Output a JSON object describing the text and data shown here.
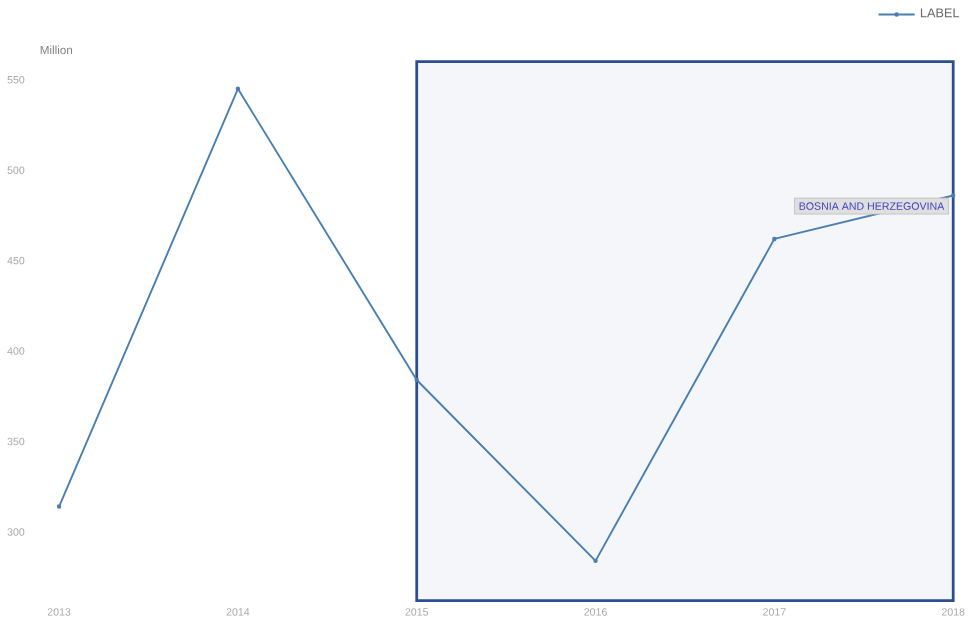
{
  "chart_data": {
    "type": "line",
    "ylabel": "Million",
    "x": [
      2013,
      2014,
      2015,
      2016,
      2017,
      2018
    ],
    "series": [
      {
        "name": "LABEL",
        "color": "#4a7fb0",
        "values": [
          314,
          545,
          384,
          284,
          462,
          486
        ]
      }
    ],
    "xlim": [
      2013,
      2018
    ],
    "ylim": [
      262,
      560
    ],
    "xticks": [
      2013,
      2014,
      2015,
      2016,
      2017,
      2018
    ],
    "yticks": [
      300,
      350,
      400,
      450,
      500,
      550
    ],
    "annotations": [
      {
        "text": "BOSNIA AND HERZEGOVINA",
        "x": 2018,
        "y": 486
      }
    ],
    "bands": [
      {
        "axis": "x",
        "from": 2015,
        "to": 2018,
        "color": "#2b4f8c"
      }
    ],
    "legend": "top right",
    "marker": "circle",
    "line_style": "solid",
    "grid": false
  }
}
